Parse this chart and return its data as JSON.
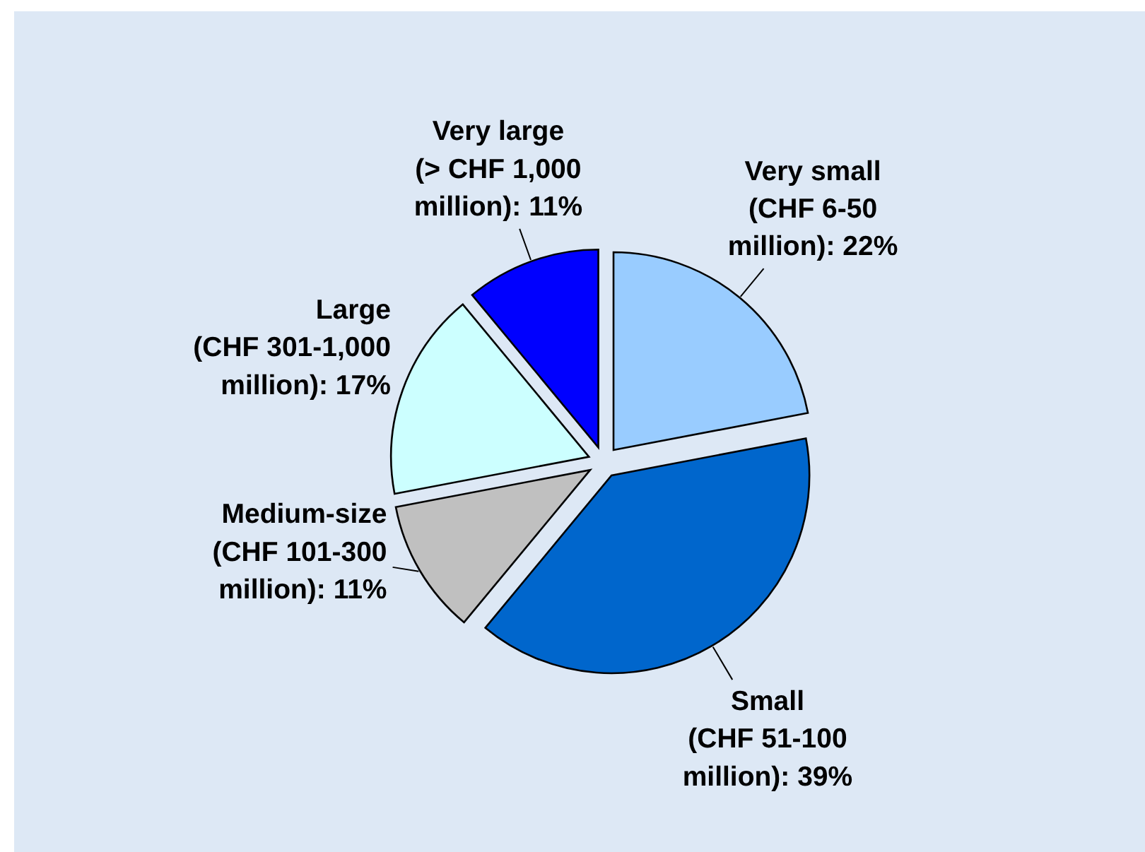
{
  "chart_data": {
    "type": "pie",
    "categories": [
      "Very small (CHF 6-50 million)",
      "Small (CHF 51-100 million)",
      "Medium-size (CHF 101-300 million)",
      "Large (CHF 301-1,000 million)",
      "Very large (> CHF 1,000 million)"
    ],
    "values": [
      22,
      39,
      11,
      17,
      11
    ],
    "colors": [
      "#99ccff",
      "#0066cc",
      "#c0c0c0",
      "#ccffff",
      "#0000ff"
    ],
    "value_labels": [
      "22%",
      "39%",
      "11%",
      "17%",
      "11%"
    ]
  }
}
